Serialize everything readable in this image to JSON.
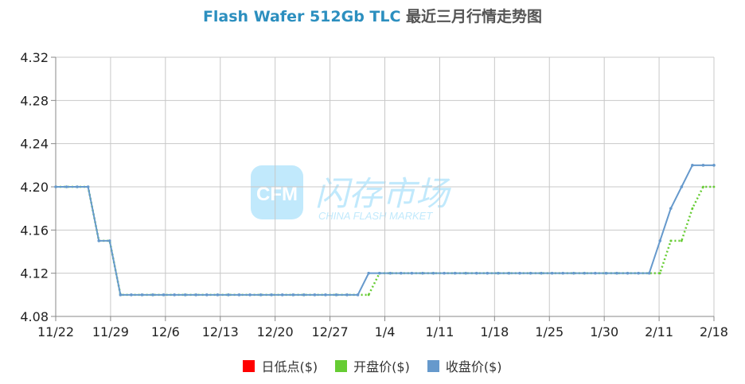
{
  "chart_data": {
    "type": "line",
    "title_en": "Flash Wafer 512Gb TLC",
    "title_zh": "最近三月行情走势图",
    "watermark": {
      "logo_text": "CFM",
      "cn": "闪存市场",
      "en": "CHINA FLASH MARKET"
    },
    "x_tick_labels": [
      "11/22",
      "11/29",
      "12/6",
      "12/13",
      "12/20",
      "12/27",
      "1/4",
      "1/11",
      "1/18",
      "1/25",
      "1/30",
      "2/11",
      "2/18"
    ],
    "ylim": [
      4.08,
      4.32
    ],
    "y_ticks": [
      "4.08",
      "4.12",
      "4.16",
      "4.20",
      "4.24",
      "4.28",
      "4.32"
    ],
    "x_count": 62,
    "grid": true,
    "legend_position": "bottom",
    "series": [
      {
        "name": "日低点($)",
        "color": "#ff0000",
        "values": []
      },
      {
        "name": "开盘价($)",
        "color": "#66cc33",
        "values": [
          4.2,
          4.2,
          4.2,
          4.2,
          4.15,
          4.15,
          4.1,
          4.1,
          4.1,
          4.1,
          4.1,
          4.1,
          4.1,
          4.1,
          4.1,
          4.1,
          4.1,
          4.1,
          4.1,
          4.1,
          4.1,
          4.1,
          4.1,
          4.1,
          4.1,
          4.1,
          4.1,
          4.1,
          4.1,
          4.1,
          4.12,
          4.12,
          4.12,
          4.12,
          4.12,
          4.12,
          4.12,
          4.12,
          4.12,
          4.12,
          4.12,
          4.12,
          4.12,
          4.12,
          4.12,
          4.12,
          4.12,
          4.12,
          4.12,
          4.12,
          4.12,
          4.12,
          4.12,
          4.12,
          4.12,
          4.12,
          4.12,
          4.15,
          4.15,
          4.18,
          4.2,
          4.2
        ]
      },
      {
        "name": "收盘价($)",
        "color": "#6699cc",
        "values": [
          4.2,
          4.2,
          4.2,
          4.2,
          4.15,
          4.15,
          4.1,
          4.1,
          4.1,
          4.1,
          4.1,
          4.1,
          4.1,
          4.1,
          4.1,
          4.1,
          4.1,
          4.1,
          4.1,
          4.1,
          4.1,
          4.1,
          4.1,
          4.1,
          4.1,
          4.1,
          4.1,
          4.1,
          4.1,
          4.12,
          4.12,
          4.12,
          4.12,
          4.12,
          4.12,
          4.12,
          4.12,
          4.12,
          4.12,
          4.12,
          4.12,
          4.12,
          4.12,
          4.12,
          4.12,
          4.12,
          4.12,
          4.12,
          4.12,
          4.12,
          4.12,
          4.12,
          4.12,
          4.12,
          4.12,
          4.12,
          4.15,
          4.18,
          4.2,
          4.22,
          4.22,
          4.22
        ]
      }
    ]
  }
}
